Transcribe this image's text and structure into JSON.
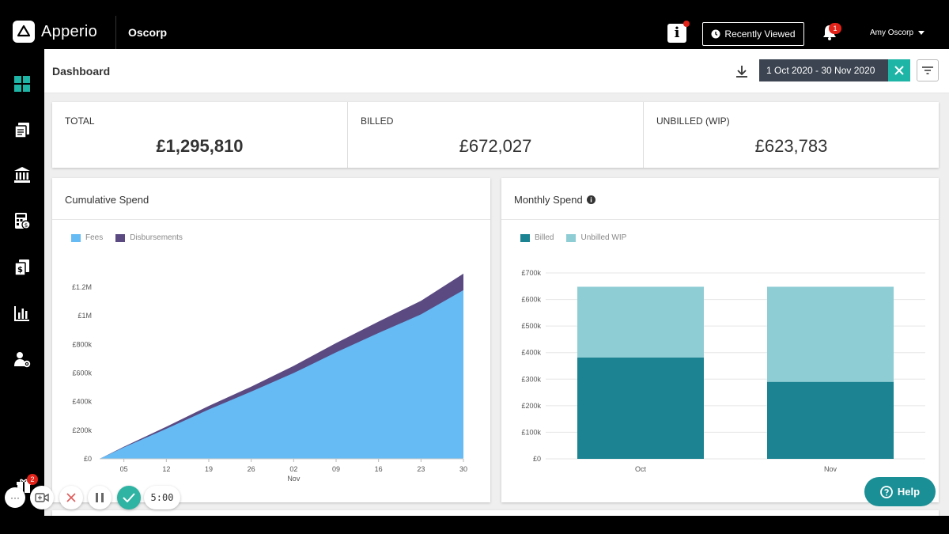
{
  "topbar": {
    "app_name": "Apperio",
    "org_name": "Oscorp",
    "info_icon": "info-icon",
    "recently_viewed_label": "Recently Viewed",
    "notifications_count": "1",
    "user_name": "Amy Oscorp"
  },
  "sidebar": {
    "items": [
      {
        "icon": "dashboard-icon",
        "active": true
      },
      {
        "icon": "documents-icon"
      },
      {
        "icon": "bank-icon"
      },
      {
        "icon": "calculator-icon"
      },
      {
        "icon": "invoices-icon"
      },
      {
        "icon": "bar-chart-icon"
      },
      {
        "icon": "user-settings-icon"
      }
    ]
  },
  "header": {
    "title": "Dashboard",
    "date_range": "1 Oct 2020 - 30 Nov 2020"
  },
  "kpis": [
    {
      "label": "TOTAL",
      "value": "£1,295,810"
    },
    {
      "label": "BILLED",
      "value": "£672,027"
    },
    {
      "label": "UNBILLED (WIP)",
      "value": "£623,783"
    }
  ],
  "cumulative": {
    "title": "Cumulative Spend",
    "legend": [
      "Fees",
      "Disbursements"
    ]
  },
  "monthly": {
    "title": "Monthly Spend",
    "legend": [
      "Billed",
      "Unbilled WIP"
    ]
  },
  "colors": {
    "fees": "#66bbf4",
    "disbursements": "#5b4a82",
    "billed": "#1b8392",
    "unbilled": "#8fcdd5",
    "accent": "#1fb5a6"
  },
  "chart_data": [
    {
      "type": "area",
      "title": "Cumulative Spend",
      "xlabel": "",
      "ylabel": "",
      "x_tick_labels": [
        "05",
        "12",
        "19",
        "26",
        "02",
        "09",
        "16",
        "23",
        "30"
      ],
      "x_secondary_label": "Nov",
      "y_tick_labels": [
        "£0",
        "£200k",
        "£400k",
        "£600k",
        "£800k",
        "£1M",
        "£1.2M"
      ],
      "ylim": [
        0,
        1300000
      ],
      "x": [
        "2020-10-01",
        "2020-10-05",
        "2020-10-12",
        "2020-10-19",
        "2020-10-26",
        "2020-11-02",
        "2020-11-09",
        "2020-11-16",
        "2020-11-23",
        "2020-11-30"
      ],
      "series": [
        {
          "name": "Fees",
          "values": [
            0,
            80000,
            210000,
            345000,
            470000,
            600000,
            745000,
            880000,
            1010000,
            1180000
          ]
        },
        {
          "name": "Disbursements",
          "values": [
            0,
            5000,
            15000,
            25000,
            35000,
            50000,
            65000,
            80000,
            95000,
            115000
          ]
        }
      ],
      "stacked": true,
      "legend_position": "top-left"
    },
    {
      "type": "bar",
      "title": "Monthly Spend",
      "categories": [
        "Oct",
        "Nov"
      ],
      "y_tick_labels": [
        "£0",
        "£100k",
        "£200k",
        "£300k",
        "£400k",
        "£500k",
        "£600k",
        "£700k"
      ],
      "ylim": [
        0,
        700000
      ],
      "series": [
        {
          "name": "Billed",
          "values": [
            382000,
            290000
          ]
        },
        {
          "name": "Unbilled WIP",
          "values": [
            266000,
            358000
          ]
        }
      ],
      "stacked": true,
      "grid": true,
      "legend_position": "top-left"
    }
  ],
  "help_label": "Help",
  "recorder": {
    "gift_count": "2",
    "timer": "5:00"
  }
}
